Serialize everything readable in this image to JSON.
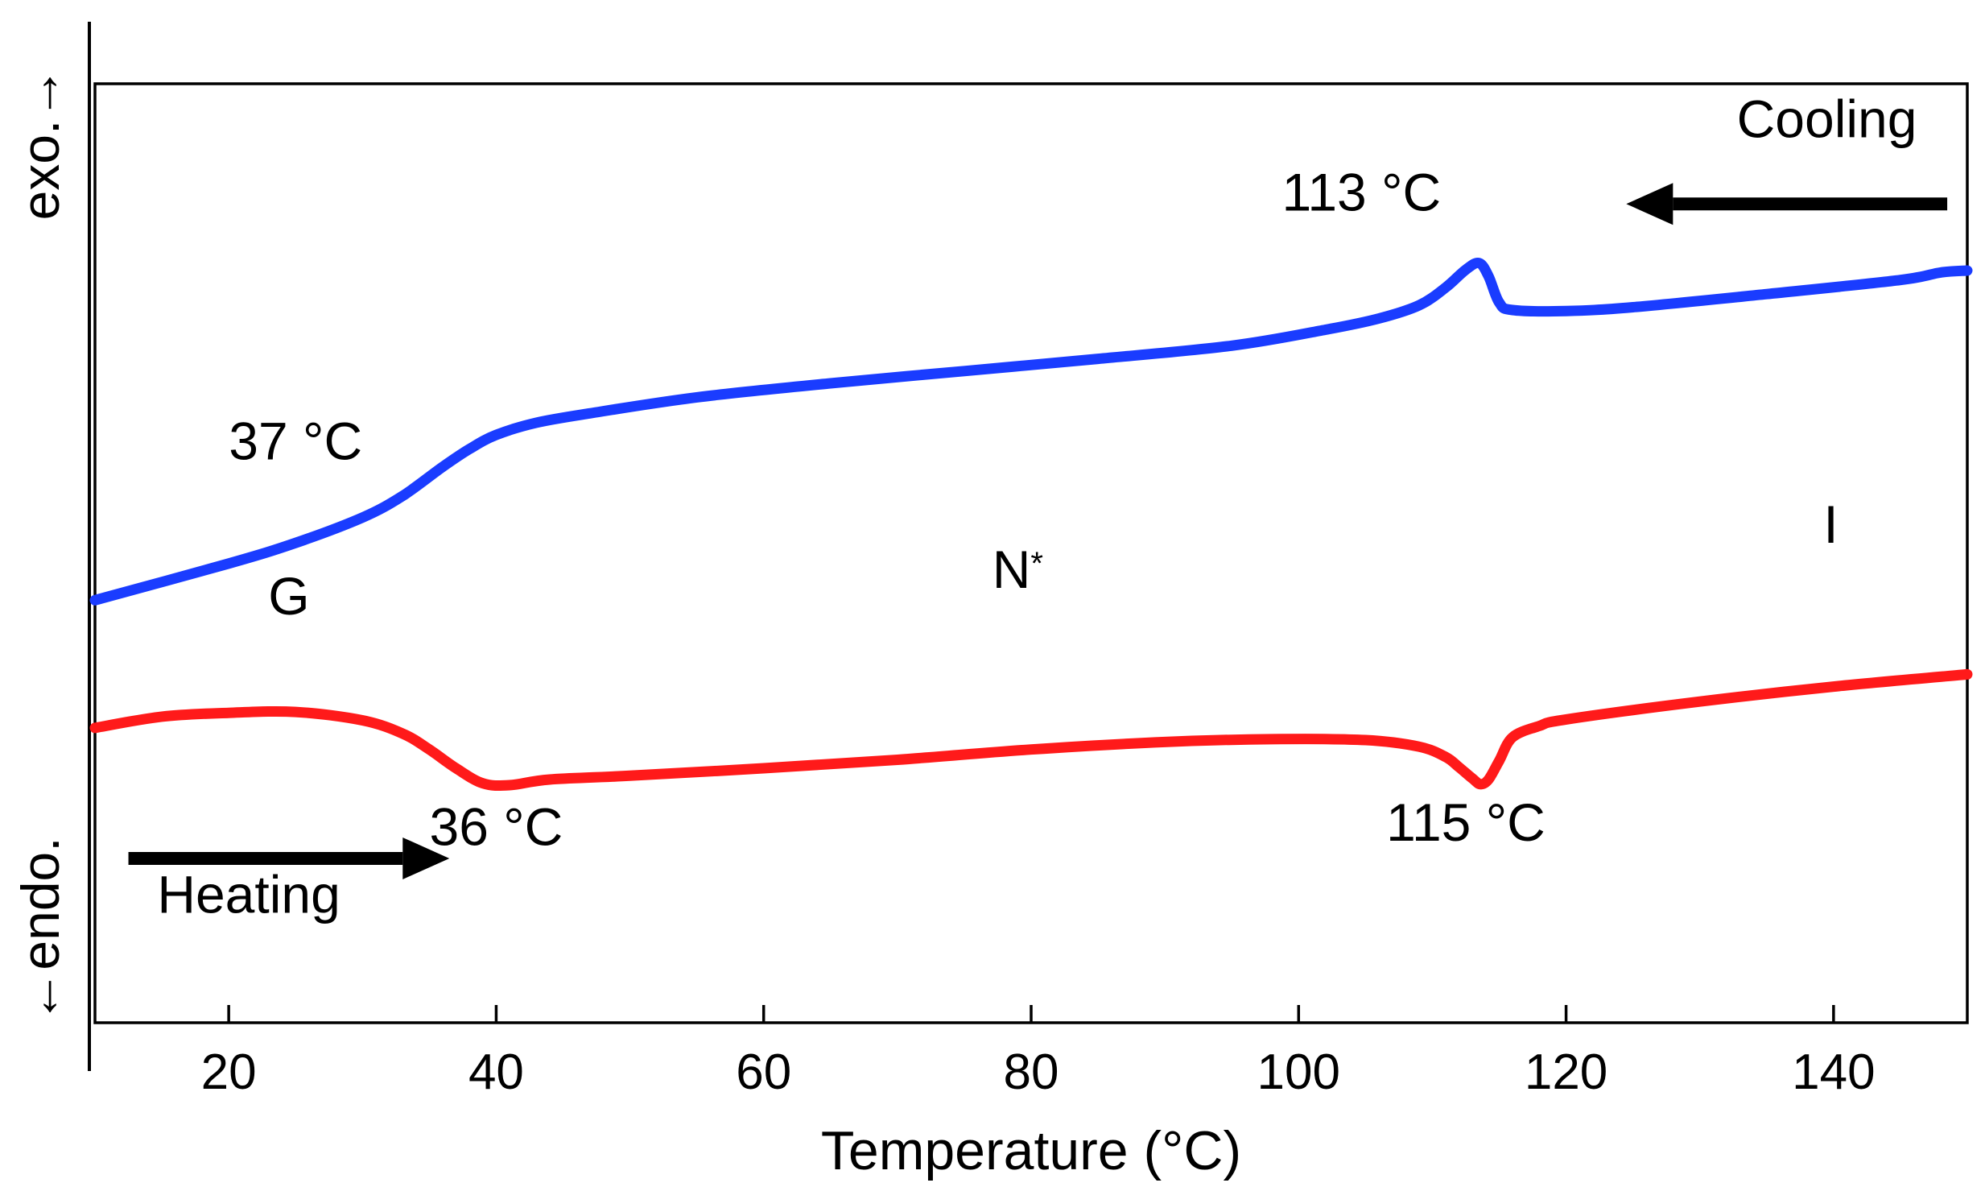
{
  "chart_data": {
    "type": "line",
    "title": "",
    "xlabel": "Temperature (°C)",
    "ylabel_top": "exo.→",
    "ylabel_bottom": "←endo.",
    "xlim": [
      10,
      150
    ],
    "ylim": [
      0,
      100
    ],
    "x_ticks": [
      20,
      40,
      60,
      80,
      100,
      120,
      140
    ],
    "grid": false,
    "series": [
      {
        "name": "Cooling",
        "color": "#1a3cff",
        "points": [
          [
            10,
            45
          ],
          [
            20,
            48.9
          ],
          [
            25,
            51.1
          ],
          [
            30,
            53.8
          ],
          [
            33,
            56.1
          ],
          [
            36,
            59.2
          ],
          [
            38,
            61.1
          ],
          [
            40,
            62.6
          ],
          [
            43,
            63.9
          ],
          [
            47,
            64.9
          ],
          [
            55,
            66.6
          ],
          [
            65,
            68.1
          ],
          [
            75,
            69.4
          ],
          [
            85,
            70.7
          ],
          [
            95,
            72.1
          ],
          [
            102,
            73.8
          ],
          [
            106,
            75
          ],
          [
            109,
            76.4
          ],
          [
            111,
            78.3
          ],
          [
            112.5,
            80.2
          ],
          [
            113.5,
            80.9
          ],
          [
            114.2,
            79.5
          ],
          [
            115,
            76.7
          ],
          [
            116,
            75.9
          ],
          [
            120,
            75.8
          ],
          [
            125,
            76.2
          ],
          [
            135,
            77.6
          ],
          [
            145,
            79.1
          ],
          [
            148,
            79.9
          ],
          [
            150,
            80.1
          ]
        ]
      },
      {
        "name": "Heating",
        "color": "#ff1a1a",
        "points": [
          [
            10,
            31.4
          ],
          [
            15,
            32.6
          ],
          [
            20,
            33
          ],
          [
            25,
            33.1
          ],
          [
            30,
            32.2
          ],
          [
            33,
            30.8
          ],
          [
            35,
            29.1
          ],
          [
            37,
            27.1
          ],
          [
            39,
            25.5
          ],
          [
            41,
            25.3
          ],
          [
            44,
            25.9
          ],
          [
            50,
            26.3
          ],
          [
            60,
            27.1
          ],
          [
            70,
            28
          ],
          [
            80,
            29.1
          ],
          [
            90,
            29.9
          ],
          [
            98,
            30.2
          ],
          [
            105,
            30.1
          ],
          [
            109,
            29.4
          ],
          [
            111,
            28.3
          ],
          [
            112,
            27.2
          ],
          [
            113,
            26
          ],
          [
            113.6,
            25.4
          ],
          [
            114.2,
            25.9
          ],
          [
            115,
            27.9
          ],
          [
            116,
            30.4
          ],
          [
            118,
            31.6
          ],
          [
            120,
            32.3
          ],
          [
            130,
            34.2
          ],
          [
            140,
            35.8
          ],
          [
            150,
            37.1
          ]
        ]
      }
    ],
    "annotations": [
      {
        "text": "37 °C",
        "x": 25,
        "y": 60
      },
      {
        "text": "G",
        "x": 24.5,
        "y": 43.5
      },
      {
        "text": "N",
        "sup": "*",
        "x": 79,
        "y": 46.3
      },
      {
        "text": "113 °C",
        "x": 104.7,
        "y": 86.5
      },
      {
        "text": "I",
        "x": 139.8,
        "y": 51.1
      },
      {
        "text": "36 °C",
        "x": 40,
        "y": 18.9
      },
      {
        "text": "115 °C",
        "x": 112.5,
        "y": 19.4
      }
    ],
    "arrows": [
      {
        "label": "Cooling",
        "direction": "left",
        "from_x": 148.5,
        "to_x": 124.5,
        "y": 87.2,
        "label_x": 139.5,
        "label_y": 94.3
      },
      {
        "label": "Heating",
        "direction": "right",
        "from_x": 12.5,
        "to_x": 36.5,
        "y": 17.5,
        "label_x": 21.5,
        "label_y": 11.7
      }
    ]
  }
}
